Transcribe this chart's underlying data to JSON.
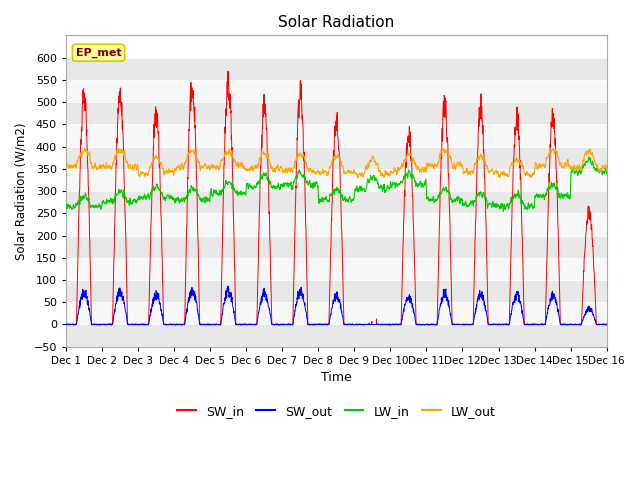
{
  "title": "Solar Radiation",
  "xlabel": "Time",
  "ylabel": "Solar Radiation (W/m2)",
  "ylim": [
    -50,
    650
  ],
  "yticks": [
    -50,
    0,
    50,
    100,
    150,
    200,
    250,
    300,
    350,
    400,
    450,
    500,
    550,
    600
  ],
  "legend_labels": [
    "SW_in",
    "SW_out",
    "LW_in",
    "LW_out"
  ],
  "legend_colors": [
    "#ff0000",
    "#0000ff",
    "#00cc00",
    "#ffa500"
  ],
  "ep_met_box_facecolor": "#ffff99",
  "ep_met_text_color": "#800000",
  "ep_met_edge_color": "#cccc00",
  "fig_bg_color": "#ffffff",
  "plot_bg_color": "#ffffff",
  "grid_color": "#d8d8d8",
  "n_days": 15,
  "pts_per_hour": 6,
  "sw_peaks": [
    540,
    550,
    505,
    565,
    575,
    520,
    550,
    485,
    65,
    460,
    525,
    520,
    490,
    490,
    270
  ],
  "lw_in_base": [
    265,
    275,
    285,
    280,
    295,
    310,
    315,
    280,
    305,
    315,
    280,
    270,
    265,
    290,
    345
  ],
  "lw_out_base": [
    360,
    360,
    345,
    358,
    360,
    355,
    350,
    348,
    342,
    352,
    362,
    348,
    342,
    362,
    358
  ]
}
